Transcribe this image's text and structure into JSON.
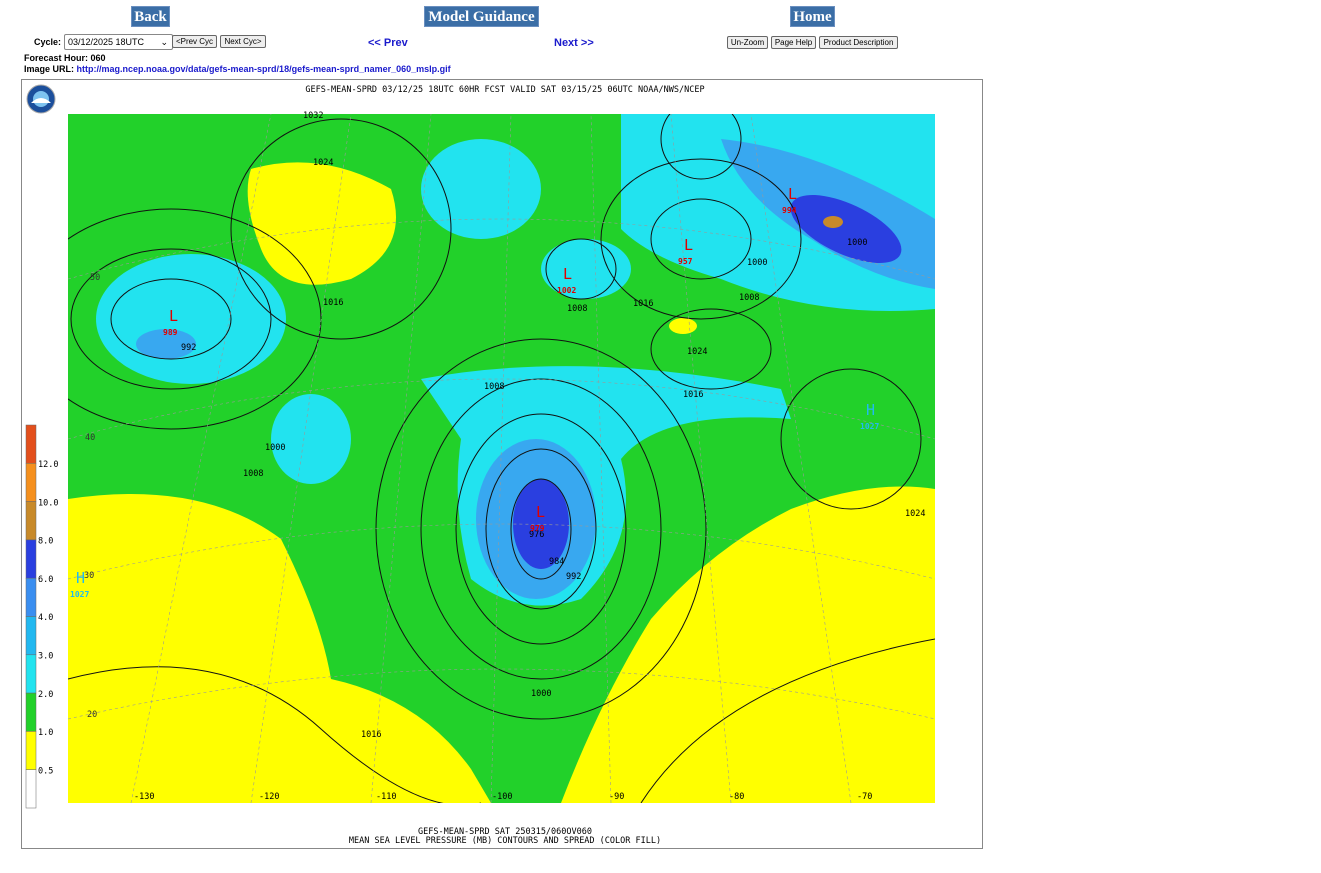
{
  "nav": {
    "back": "Back",
    "model_guidance": "Model Guidance",
    "home": "Home",
    "cycle_label": "Cycle:",
    "cycle_value": "03/12/2025 18UTC",
    "prev_cyc": "<Prev Cyc",
    "next_cyc": "Next Cyc>",
    "prev": "<< Prev",
    "next": "Next >>",
    "unzoom": "Un-Zoom",
    "page_help": "Page Help",
    "product_description": "Product Description"
  },
  "info": {
    "forecast_hour_label": "Forecast Hour:",
    "forecast_hour": "060",
    "image_url_label": "Image URL:",
    "image_url": "http://mag.ncep.noaa.gov/data/gefs-mean-sprd/18/gefs-mean-sprd_namer_060_mslp.gif"
  },
  "map": {
    "title": "GEFS-MEAN-SPRD 03/12/25 18UTC 60HR FCST VALID SAT 03/15/25 06UTC NOAA/NWS/NCEP",
    "footer_1": "GEFS-MEAN-SPRD SAT 250315/060OV060",
    "footer_2": "MEAN SEA LEVEL PRESSURE (MB) CONTOURS AND SPREAD (COLOR FILL)",
    "colorbar_labels": [
      "12.0",
      "10.0",
      "8.0",
      "6.0",
      "4.0",
      "3.0",
      "2.0",
      "1.0",
      "0.5"
    ],
    "longitude_labels": [
      "-130",
      "-120",
      "-110",
      "-100",
      "-90",
      "-80",
      "-70"
    ],
    "latitude_labels": [
      "50",
      "40",
      "30",
      "20"
    ],
    "contour_labels": [
      "1032",
      "1024",
      "1016",
      "992",
      "1000",
      "1008",
      "1008",
      "1008",
      "1016",
      "1000",
      "1008",
      "1000",
      "1024",
      "1016",
      "976",
      "984",
      "992",
      "1000",
      "1016",
      "1024"
    ],
    "pressure_centers": [
      {
        "symbol": "L",
        "value": "989"
      },
      {
        "symbol": "L",
        "value": "979"
      },
      {
        "symbol": "L",
        "value": "957"
      },
      {
        "symbol": "L",
        "value": "994"
      },
      {
        "symbol": "L",
        "value": "1002"
      },
      {
        "symbol": "H",
        "value": "1027"
      },
      {
        "symbol": "H",
        "value": "1027"
      }
    ]
  }
}
